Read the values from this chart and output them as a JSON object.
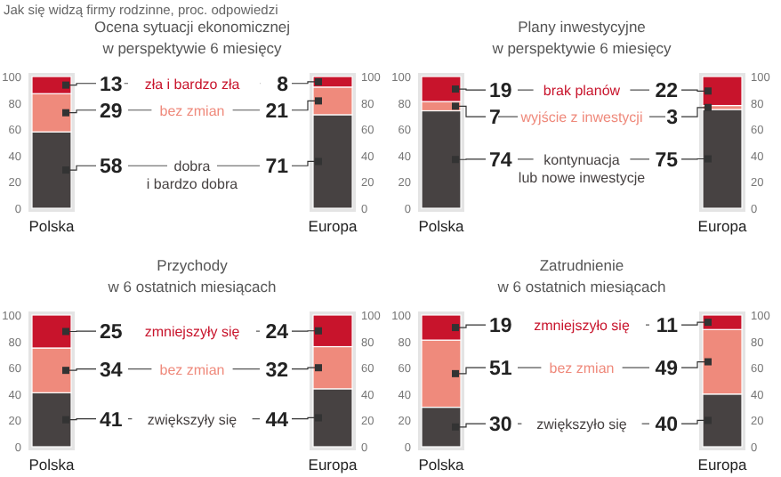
{
  "chart_data": [
    {
      "type": "bar",
      "stacked": true,
      "title": "Ocena sytuacji ekonomicznej",
      "subtitle": "w perspektywie 6 miesięcy",
      "annotations": [
        "Jak się widzą firmy rodzinne, proc. odpowiedzi"
      ],
      "categories": [
        "Polska",
        "Europa"
      ],
      "ylim": [
        0,
        100
      ],
      "yticks": [
        0,
        20,
        40,
        60,
        80,
        100
      ],
      "y2lim": [
        0,
        100
      ],
      "y2ticks": [
        0,
        20,
        40,
        60,
        80,
        100
      ],
      "data_labels": true,
      "legend": false,
      "series": [
        {
          "name": "dobra\ni bardzo dobra",
          "color": "#474242",
          "values": [
            58,
            71
          ]
        },
        {
          "name": "bez zmian",
          "color": "#ef8a7c",
          "values": [
            29,
            21
          ]
        },
        {
          "name": "zła i bardzo zła",
          "color": "#c8142c",
          "values": [
            13,
            8
          ]
        }
      ]
    },
    {
      "type": "bar",
      "stacked": true,
      "title": "Plany inwestycyjne",
      "subtitle": "w perspektywie 6 miesięcy",
      "categories": [
        "Polska",
        "Europa"
      ],
      "ylim": [
        0,
        100
      ],
      "yticks": [
        0,
        20,
        40,
        60,
        80,
        100
      ],
      "y2lim": [
        0,
        100
      ],
      "y2ticks": [
        0,
        20,
        40,
        60,
        80,
        100
      ],
      "data_labels": true,
      "legend": false,
      "series": [
        {
          "name": "kontynuacja\nlub nowe inwestycje",
          "color": "#474242",
          "values": [
            74,
            75
          ]
        },
        {
          "name": "wyjście z inwestycji",
          "color": "#ef8a7c",
          "values": [
            7,
            3
          ]
        },
        {
          "name": "brak planów",
          "color": "#c8142c",
          "values": [
            19,
            22
          ]
        }
      ]
    },
    {
      "type": "bar",
      "stacked": true,
      "title": "Przychody",
      "subtitle": "w 6 ostatnich miesiącach",
      "categories": [
        "Polska",
        "Europa"
      ],
      "ylim": [
        0,
        100
      ],
      "yticks": [
        0,
        20,
        40,
        60,
        80,
        100
      ],
      "y2lim": [
        0,
        100
      ],
      "y2ticks": [
        0,
        20,
        40,
        60,
        80,
        100
      ],
      "data_labels": true,
      "legend": false,
      "series": [
        {
          "name": "zwiększyły się",
          "color": "#474242",
          "values": [
            41,
            44
          ]
        },
        {
          "name": "bez zmian",
          "color": "#ef8a7c",
          "values": [
            34,
            32
          ]
        },
        {
          "name": "zmniejszyły się",
          "color": "#c8142c",
          "values": [
            25,
            24
          ]
        }
      ]
    },
    {
      "type": "bar",
      "stacked": true,
      "title": "Zatrudnienie",
      "subtitle": "w  6 ostatnich miesiącach",
      "categories": [
        "Polska",
        "Europa"
      ],
      "ylim": [
        0,
        100
      ],
      "yticks": [
        0,
        20,
        40,
        60,
        80,
        100
      ],
      "y2lim": [
        0,
        100
      ],
      "y2ticks": [
        0,
        20,
        40,
        60,
        80,
        100
      ],
      "data_labels": true,
      "legend": false,
      "series": [
        {
          "name": "zwiększyło się",
          "color": "#474242",
          "values": [
            30,
            40
          ]
        },
        {
          "name": "bez zmian",
          "color": "#ef8a7c",
          "values": [
            51,
            49
          ]
        },
        {
          "name": "zmniejszyło się",
          "color": "#c8142c",
          "values": [
            19,
            11
          ]
        }
      ]
    }
  ]
}
